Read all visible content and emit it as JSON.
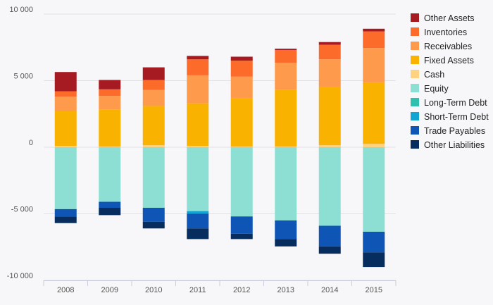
{
  "chart_data": {
    "type": "bar",
    "stacked": true,
    "categories": [
      "2008",
      "2009",
      "2010",
      "2011",
      "2012",
      "2013",
      "2014",
      "2015"
    ],
    "ylim": [
      -10000,
      10000
    ],
    "yticks": [
      10000,
      5000,
      0,
      -5000,
      -10000
    ],
    "ytick_labels": [
      "10 000",
      "5 000",
      "0",
      "-5 000",
      "-10 000"
    ],
    "legend_position": "right",
    "series": [
      {
        "name": "Other Assets",
        "color": "#a61b22",
        "side": "positive",
        "values": [
          1450,
          700,
          950,
          260,
          300,
          100,
          200,
          200
        ]
      },
      {
        "name": "Inventories",
        "color": "#fd6b2a",
        "side": "positive",
        "values": [
          400,
          500,
          750,
          1200,
          1200,
          950,
          1100,
          1250
        ]
      },
      {
        "name": "Receivables",
        "color": "#fd9a4b",
        "side": "positive",
        "values": [
          1100,
          1000,
          1200,
          2100,
          1600,
          2050,
          2050,
          2600
        ]
      },
      {
        "name": "Fixed Assets",
        "color": "#f9b200",
        "side": "positive",
        "values": [
          2600,
          2800,
          2950,
          3200,
          3650,
          4250,
          4400,
          4600
        ]
      },
      {
        "name": "Cash",
        "color": "#fdd282",
        "side": "positive",
        "values": [
          100,
          50,
          150,
          100,
          50,
          50,
          150,
          250
        ]
      },
      {
        "name": "Equity",
        "color": "#8edfd3",
        "side": "negative",
        "values": [
          -4650,
          -4100,
          -4550,
          -4800,
          -5200,
          -5500,
          -5900,
          -6350
        ]
      },
      {
        "name": "Long-Term Debt",
        "color": "#2fc1ad",
        "side": "negative",
        "values": [
          0,
          0,
          0,
          0,
          0,
          0,
          0,
          0
        ]
      },
      {
        "name": "Short-Term Debt",
        "color": "#14a4d1",
        "side": "negative",
        "values": [
          0,
          0,
          0,
          -200,
          0,
          0,
          0,
          0
        ]
      },
      {
        "name": "Trade Payables",
        "color": "#0e55b5",
        "side": "negative",
        "values": [
          -550,
          -450,
          -1050,
          -1100,
          -1300,
          -1400,
          -1550,
          -1550
        ]
      },
      {
        "name": "Other Liabilities",
        "color": "#062d5d",
        "side": "negative",
        "values": [
          -500,
          -550,
          -500,
          -800,
          -400,
          -550,
          -550,
          -1100
        ]
      }
    ]
  }
}
